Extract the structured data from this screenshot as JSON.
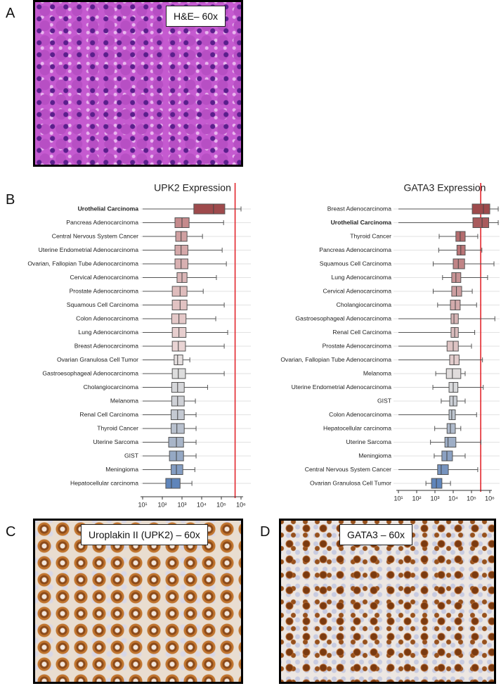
{
  "panels": {
    "a": {
      "label": "A",
      "caption": "H&E– 60x"
    },
    "b": {
      "label": "B"
    },
    "c": {
      "label": "C",
      "caption": "Uroplakin II (UPK2) – 60x"
    },
    "d": {
      "label": "D",
      "caption": "GATA3 – 60x"
    }
  },
  "chart_data": [
    {
      "type": "box",
      "title": "UPK2 Expression",
      "xscale": "log",
      "xlim": [
        10,
        1000000
      ],
      "xticks": [
        {
          "value": 10,
          "label": "10¹"
        },
        {
          "value": 100,
          "label": "10²"
        },
        {
          "value": 1000,
          "label": "10³"
        },
        {
          "value": 10000,
          "label": "10⁴"
        },
        {
          "value": 100000,
          "label": "10⁵"
        },
        {
          "value": 1000000,
          "label": "10⁶"
        }
      ],
      "threshold": 500000,
      "threshold_color": "#e3262d",
      "highlight": 0,
      "highlight_color": "#2a2ad4",
      "categories": [
        "Urothelial Carcinoma",
        "Pancreas Adenocarcinoma",
        "Central Nervous System Cancer",
        "Uterine Endometrial Adenocarcinoma",
        "Ovarian, Fallopian Tube Adenocarcinoma",
        "Cervical Adenocarcinoma",
        "Prostate Adenocarcinoma",
        "Squamous Cell Carcinoma",
        "Colon Adenocarcinoma",
        "Lung Adenocarcinoma",
        "Breast Adenocarcinoma",
        "Ovarian Granulosa Cell Tumor",
        "Gastroesophageal Adenocarcinoma",
        "Cholangiocarcinoma",
        "Melanoma",
        "Renal Cell Carcinoma",
        "Thyroid Cancer",
        "Uterine Sarcoma",
        "GIST",
        "Meningioma",
        "Hepatocellular carcinoma"
      ],
      "values": [
        [
          10,
          4000,
          40000,
          150000,
          1000000
        ],
        [
          10,
          440,
          1000,
          2300,
          130000
        ],
        [
          10,
          480,
          900,
          1800,
          11000
        ],
        [
          10,
          440,
          900,
          2000,
          110000
        ],
        [
          10,
          440,
          900,
          2000,
          180000
        ],
        [
          10,
          560,
          1000,
          1800,
          56000
        ],
        [
          10,
          320,
          800,
          1800,
          12000
        ],
        [
          10,
          320,
          800,
          1800,
          140000
        ],
        [
          10,
          300,
          700,
          1600,
          52000
        ],
        [
          10,
          320,
          700,
          1600,
          210000
        ],
        [
          10,
          320,
          650,
          1500,
          140000
        ],
        [
          10,
          400,
          600,
          1100,
          2500
        ],
        [
          10,
          320,
          650,
          1500,
          140000
        ],
        [
          10,
          300,
          600,
          1300,
          20000
        ],
        [
          10,
          300,
          600,
          1300,
          4800
        ],
        [
          10,
          280,
          600,
          1300,
          5200
        ],
        [
          10,
          280,
          550,
          1300,
          5200
        ],
        [
          10,
          210,
          520,
          1200,
          5200
        ],
        [
          10,
          230,
          520,
          1200,
          5200
        ],
        [
          10,
          280,
          520,
          1100,
          4500
        ],
        [
          10,
          150,
          290,
          800,
          3200
        ]
      ],
      "colors": [
        "#9e4a4c",
        "#c58a8c",
        "#d0a0a1",
        "#d4a8a9",
        "#d8b0b1",
        "#dbb6b7",
        "#debcbc",
        "#e1c2c2",
        "#e4c8c8",
        "#e7cece",
        "#e9d4d4",
        "#e6e0e0",
        "#dddddd",
        "#d6d7da",
        "#cfd1d6",
        "#c4c9d2",
        "#b8c0cd",
        "#a8b5c8",
        "#95a8c4",
        "#849dc2",
        "#5f85bb"
      ]
    },
    {
      "type": "box",
      "title": "GATA3 Expression",
      "xscale": "log",
      "xlim": [
        10,
        1000000
      ],
      "xticks": [
        {
          "value": 10,
          "label": "10¹"
        },
        {
          "value": 100,
          "label": "10²"
        },
        {
          "value": 1000,
          "label": "10³"
        },
        {
          "value": 10000,
          "label": "10⁴"
        },
        {
          "value": 100000,
          "label": "10⁵"
        },
        {
          "value": 1000000,
          "label": "10⁶"
        }
      ],
      "threshold": 320000,
      "threshold_color": "#e3262d",
      "highlight": 1,
      "highlight_color": "#2a2ad4",
      "categories": [
        "Breast Adenocarcinoma",
        "Urothelial Carcinoma",
        "Thyroid Cancer",
        "Pancreas Adenocarcinoma",
        "Squamous Cell Carcinoma",
        "Lung Adenocarcinoma",
        "Cervical Adenocarcinoma",
        "Cholangiocarcinoma",
        "Gastroesophageal Adenocarcinoma",
        "Renal Cell Carcinoma",
        "Prostate Adenocarcinoma",
        "Ovarian, Fallopian Tube Adenocarcinoma",
        "Melanoma",
        "Uterine Endometrial Adenocarcinoma",
        "GIST",
        "Colon Adenocarcinoma",
        "Hepatocellular carcinoma",
        "Uterine Sarcoma",
        "Meningioma",
        "Central Nervous System Cancer",
        "Ovarian Granulosa Cell Tumor"
      ],
      "values": [
        [
          10,
          110000,
          450000,
          1000000,
          2900000
        ],
        [
          10,
          120000,
          380000,
          880000,
          2900000
        ],
        [
          1700,
          14000,
          24000,
          45000,
          220000
        ],
        [
          1600,
          16000,
          26000,
          45000,
          370000
        ],
        [
          800,
          10000,
          19000,
          42000,
          1700000
        ],
        [
          2600,
          8300,
          14000,
          26000,
          760000
        ],
        [
          800,
          8300,
          15000,
          29000,
          110000
        ],
        [
          1400,
          7000,
          13000,
          24000,
          190000
        ],
        [
          10,
          7600,
          11000,
          19000,
          1900000
        ],
        [
          10,
          7600,
          12000,
          19000,
          150000
        ],
        [
          10,
          4600,
          10000,
          19000,
          100000
        ],
        [
          10,
          6400,
          11000,
          21000,
          400000
        ],
        [
          1100,
          4200,
          9000,
          26000,
          45000
        ],
        [
          770,
          5900,
          10000,
          18000,
          440000
        ],
        [
          2200,
          6400,
          10000,
          16000,
          45000
        ],
        [
          10,
          5900,
          8300,
          13000,
          190000
        ],
        [
          970,
          4600,
          7000,
          13000,
          26000
        ],
        [
          570,
          3500,
          5200,
          14000,
          330000
        ],
        [
          910,
          2400,
          4500,
          9100,
          45000
        ],
        [
          10,
          1400,
          2200,
          5400,
          220000
        ],
        [
          320,
          650,
          1200,
          2400,
          7100
        ]
      ],
      "colors": [
        "#9e4a4c",
        "#a95b5d",
        "#b46c6e",
        "#b97476",
        "#c08486",
        "#c79395",
        "#cc9ea0",
        "#d2aaab",
        "#d6b4b5",
        "#dabcbd",
        "#dec4c4",
        "#e2cccc",
        "#e0dcdc",
        "#d8d9db",
        "#ccd0d6",
        "#bec6d0",
        "#afbacb",
        "#9eaec6",
        "#8ba1c2",
        "#7794bf",
        "#5f85bb"
      ]
    }
  ]
}
